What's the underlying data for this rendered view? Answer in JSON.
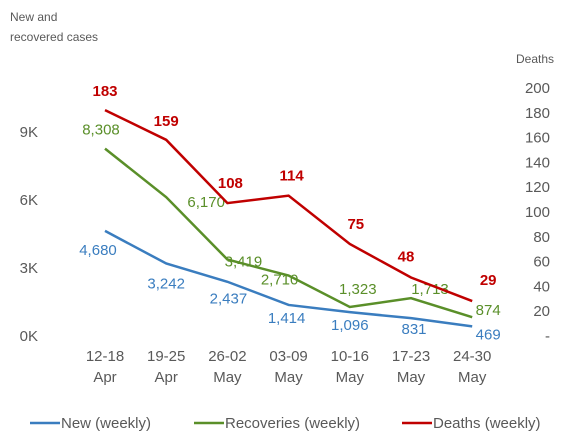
{
  "chart_data": {
    "type": "line",
    "y_axis_label": [
      "New and",
      "recovered cases"
    ],
    "y2_axis_label": "Deaths",
    "categories": [
      [
        "12-18",
        "Apr"
      ],
      [
        "19-25",
        "Apr"
      ],
      [
        "26-02",
        "May"
      ],
      [
        "03-09",
        "May"
      ],
      [
        "10-16",
        "May"
      ],
      [
        "17-23",
        "May"
      ],
      [
        "24-30",
        "May"
      ]
    ],
    "series": [
      {
        "name": "New (weekly)",
        "color": "#3a7dbf",
        "values": [
          4680,
          3242,
          2437,
          1414,
          1096,
          831,
          469
        ],
        "value_labels": [
          "4,680",
          "3,242",
          "2,437",
          "1,414",
          "1,096",
          "831",
          "469"
        ]
      },
      {
        "name": "Recoveries (weekly)",
        "color": "#5a8f29",
        "values": [
          8308,
          6170,
          3419,
          2710,
          1323,
          1713,
          874
        ],
        "value_labels": [
          "8,308",
          "6,170",
          "3,419",
          "2,710",
          "1,323",
          "1,713",
          "874"
        ]
      },
      {
        "name": "Deaths (weekly)",
        "color": "#c00000",
        "axis": "y2",
        "values": [
          183,
          159,
          108,
          114,
          75,
          48,
          29
        ]
      }
    ],
    "ylim": [
      0,
      10940
    ],
    "yticks": [
      {
        "value": 0,
        "label": "0K"
      },
      {
        "value": 3000,
        "label": "3K"
      },
      {
        "value": 6000,
        "label": "6K"
      },
      {
        "value": 9000,
        "label": "9K"
      }
    ],
    "y2lim": [
      0,
      200
    ],
    "y2ticks": [
      {
        "value": 0,
        "label": "-"
      },
      20,
      40,
      60,
      80,
      100,
      120,
      140,
      160,
      180,
      200
    ],
    "grid": false,
    "legend": "bottom"
  }
}
